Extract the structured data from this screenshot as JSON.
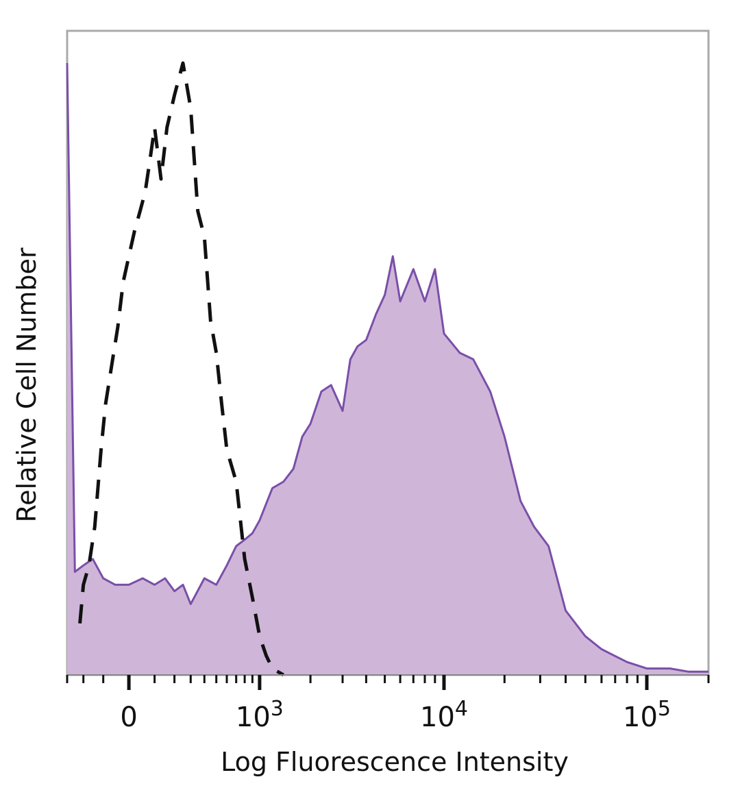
{
  "chart_data": {
    "type": "area",
    "xlabel": "Log Fluorescence Intensity",
    "ylabel": "Relative Cell Number",
    "x_scale": "biexponential",
    "x_ticks": [
      {
        "label": "0",
        "base": "0",
        "exp": ""
      },
      {
        "label": "10^3",
        "base": "10",
        "exp": "3"
      },
      {
        "label": "10^4",
        "base": "10",
        "exp": "4"
      },
      {
        "label": "10^5",
        "base": "10",
        "exp": "5"
      }
    ],
    "xlim": [
      -300,
      200000
    ],
    "ylim": [
      0,
      100
    ],
    "grid": false,
    "colors": {
      "stained_fill": "#cfb6d9",
      "stained_line": "#7a4fa8",
      "control_line": "#111111",
      "frame": "#aaaaaa"
    },
    "series": [
      {
        "style": "filled-solid",
        "x": [
          -300,
          -250,
          -200,
          -150,
          -100,
          -50,
          0,
          50,
          100,
          150,
          200,
          250,
          300,
          400,
          500,
          600,
          700,
          800,
          900,
          1000,
          1200,
          1400,
          1600,
          1800,
          2000,
          2300,
          2600,
          3000,
          3300,
          3600,
          4000,
          4500,
          5000,
          5500,
          6000,
          7000,
          8000,
          9000,
          10000,
          12000,
          14000,
          17000,
          20000,
          24000,
          28000,
          33000,
          40000,
          50000,
          60000,
          80000,
          100000,
          130000,
          160000,
          200000
        ],
        "y": [
          95,
          16,
          17,
          18,
          15,
          14,
          14,
          15,
          14,
          15,
          13,
          14,
          11,
          15,
          14,
          17,
          20,
          21,
          22,
          24,
          29,
          30,
          32,
          37,
          39,
          44,
          45,
          41,
          49,
          51,
          52,
          56,
          59,
          65,
          58,
          63,
          58,
          63,
          53,
          50,
          49,
          44,
          37,
          27,
          23,
          20,
          10,
          6,
          4,
          2,
          1,
          1,
          0.5,
          0.5
        ]
      },
      {
        "style": "dashed",
        "x": [
          -220,
          -200,
          -170,
          -140,
          -110,
          -90,
          -60,
          -40,
          -20,
          0,
          20,
          40,
          60,
          80,
          100,
          130,
          160,
          200,
          250,
          300,
          350,
          400,
          450,
          500,
          550,
          600,
          700,
          800,
          900,
          1000,
          1100,
          1200,
          1400
        ],
        "y": [
          8,
          14,
          17,
          23,
          35,
          42,
          49,
          54,
          61,
          65,
          69,
          72,
          75,
          80,
          85,
          77,
          85,
          90,
          95,
          88,
          72,
          68,
          55,
          50,
          42,
          35,
          30,
          18,
          12,
          6,
          3,
          1,
          0
        ]
      }
    ]
  }
}
